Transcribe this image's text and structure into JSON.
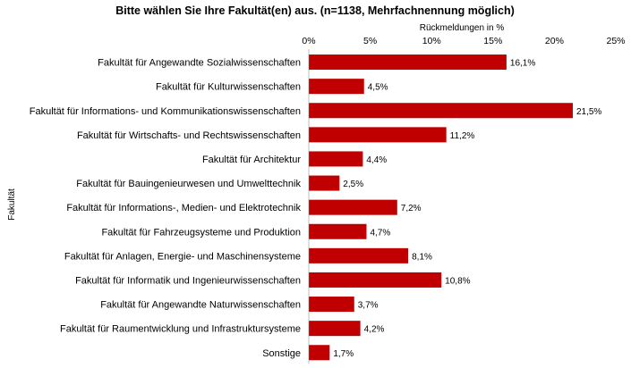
{
  "chart_data": {
    "type": "bar",
    "orientation": "horizontal",
    "title": "Bitte wählen Sie Ihre Fakultät(en) aus. (n=1138, Mehrfachnennung möglich)",
    "xlabel": "Rückmeldungen in %",
    "ylabel": "Fakultät",
    "xlim": [
      0,
      25
    ],
    "x_ticks": [
      "0%",
      "5%",
      "10%",
      "15%",
      "20%",
      "25%"
    ],
    "x_tick_values": [
      0,
      5,
      10,
      15,
      20,
      25
    ],
    "axis_position": "top",
    "grid": false,
    "bar_color": "#c00000",
    "categories": [
      "Fakultät für Angewandte Sozialwissenschaften",
      "Fakultät für Kulturwissenschaften",
      "Fakultät für Informations- und Kommunikationswissenschaften",
      "Fakultät für Wirtschafts- und Rechtswissenschaften",
      "Fakultät für Architektur",
      "Fakultät für Bauingenieurwesen und Umwelttechnik",
      "Fakultät für Informations-, Medien- und Elektrotechnik",
      "Fakultät für Fahrzeugsysteme und Produktion",
      "Fakultät für Anlagen, Energie- und Maschinensysteme",
      "Fakultät für Informatik und Ingenieurwissenschaften",
      "Fakultät für Angewandte Naturwissenschaften",
      "Fakultät für Raumentwicklung und Infrastruktursysteme",
      "Sonstige"
    ],
    "values": [
      16.1,
      4.5,
      21.5,
      11.2,
      4.4,
      2.5,
      7.2,
      4.7,
      8.1,
      10.8,
      3.7,
      4.2,
      1.7
    ],
    "data_labels": [
      "16,1%",
      "4,5%",
      "21,5%",
      "11,2%",
      "4,4%",
      "2,5%",
      "7,2%",
      "4,7%",
      "8,1%",
      "10,8%",
      "3,7%",
      "4,2%",
      "1,7%"
    ]
  }
}
